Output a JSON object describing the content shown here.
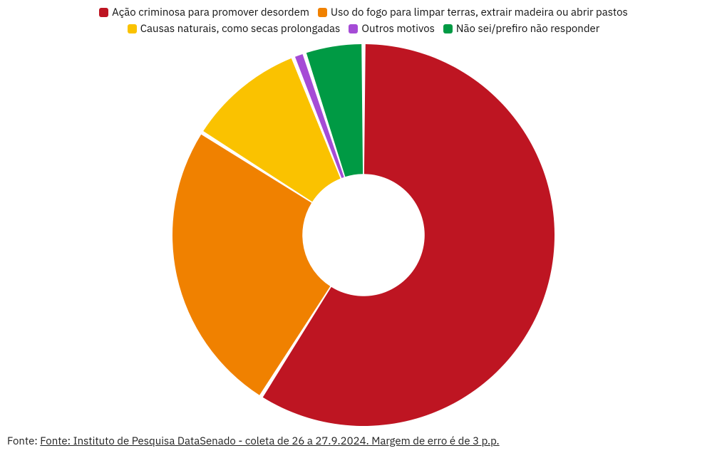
{
  "chart": {
    "type": "pie",
    "inner_radius_ratio": 0.32,
    "slice_gap_deg": 1.2,
    "background_color": "#ffffff",
    "slices": [
      {
        "label": "Ação criminosa para promover desordem",
        "value": 59,
        "color": "#be1522"
      },
      {
        "label": "Uso do fogo para limpar terras, extrair madeira ou abrir pastos",
        "value": 25,
        "color": "#f08100"
      },
      {
        "label": "Causas naturais, como secas prolongadas",
        "value": 10,
        "color": "#fac200"
      },
      {
        "label": "Outros motivos",
        "value": 1,
        "color": "#a54bd6"
      },
      {
        "label": "Não sei/prefiro não responder",
        "value": 5,
        "color": "#009a44"
      }
    ],
    "legend_fontsize": 15
  },
  "source": {
    "prefix": "Fonte: ",
    "text": "Fonte: Instituto de Pesquisa DataSenado - coleta de 26 a 27.9.2024. Margem de erro é de 3 p.p."
  }
}
